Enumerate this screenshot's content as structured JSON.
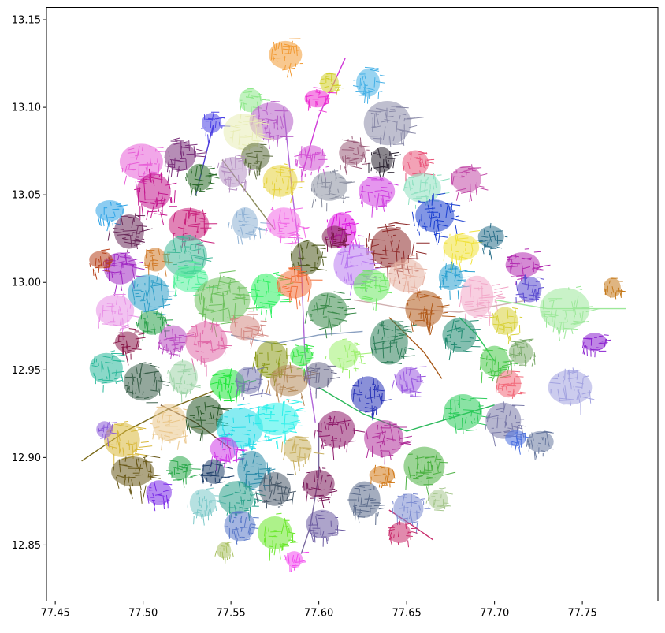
{
  "chart_data": {
    "type": "scatter",
    "title": "",
    "xlabel": "",
    "ylabel": "",
    "xlim": [
      77.445,
      77.793
    ],
    "ylim": [
      12.818,
      13.157
    ],
    "xticks": [
      77.45,
      77.5,
      77.55,
      77.6,
      77.65,
      77.7,
      77.75
    ],
    "xtick_labels": [
      "77.45",
      "77.50",
      "77.55",
      "77.60",
      "77.65",
      "77.70",
      "77.75"
    ],
    "yticks": [
      12.85,
      12.9,
      12.95,
      13.0,
      13.05,
      13.1,
      13.15
    ],
    "ytick_labels": [
      "12.85",
      "12.90",
      "12.95",
      "13.00",
      "13.05",
      "13.10",
      "13.15"
    ],
    "grid": false,
    "legend": "none",
    "description_seed": 7,
    "wards": [
      {
        "x": 77.581,
        "y": 13.13,
        "r": 0.01,
        "color": "#f29a33"
      },
      {
        "x": 77.628,
        "y": 13.114,
        "r": 0.009,
        "color": "#45b0e6"
      },
      {
        "x": 77.606,
        "y": 13.114,
        "r": 0.006,
        "color": "#d2cf2c"
      },
      {
        "x": 77.599,
        "y": 13.105,
        "r": 0.007,
        "color": "#ee2bd1"
      },
      {
        "x": 77.561,
        "y": 13.104,
        "r": 0.007,
        "color": "#8ee88a"
      },
      {
        "x": 77.573,
        "y": 13.092,
        "r": 0.012,
        "color": "#b55cc6"
      },
      {
        "x": 77.539,
        "y": 13.091,
        "r": 0.007,
        "color": "#4b42e6"
      },
      {
        "x": 77.639,
        "y": 13.091,
        "r": 0.013,
        "color": "#8a8aa8"
      },
      {
        "x": 77.557,
        "y": 13.086,
        "r": 0.011,
        "color": "#e8ecb5"
      },
      {
        "x": 77.521,
        "y": 13.072,
        "r": 0.011,
        "color": "#7a2f7a"
      },
      {
        "x": 77.619,
        "y": 13.074,
        "r": 0.01,
        "color": "#9b5d7a"
      },
      {
        "x": 77.499,
        "y": 13.069,
        "r": 0.012,
        "color": "#e85fd7"
      },
      {
        "x": 77.564,
        "y": 13.072,
        "r": 0.008,
        "color": "#5b6b3d"
      },
      {
        "x": 77.596,
        "y": 13.071,
        "r": 0.01,
        "color": "#d24fd3"
      },
      {
        "x": 77.636,
        "y": 13.07,
        "r": 0.008,
        "color": "#2a2230"
      },
      {
        "x": 77.655,
        "y": 13.068,
        "r": 0.008,
        "color": "#e9557a"
      },
      {
        "x": 77.532,
        "y": 13.06,
        "r": 0.008,
        "color": "#2b6b2a"
      },
      {
        "x": 77.551,
        "y": 13.063,
        "r": 0.01,
        "color": "#b58fc2"
      },
      {
        "x": 77.578,
        "y": 13.058,
        "r": 0.01,
        "color": "#e6d23a"
      },
      {
        "x": 77.606,
        "y": 13.055,
        "r": 0.011,
        "color": "#8b8fa0"
      },
      {
        "x": 77.633,
        "y": 13.052,
        "r": 0.01,
        "color": "#cf3fe0"
      },
      {
        "x": 77.659,
        "y": 13.054,
        "r": 0.011,
        "color": "#8ee0c0"
      },
      {
        "x": 77.684,
        "y": 13.059,
        "r": 0.009,
        "color": "#c24aa8"
      },
      {
        "x": 77.506,
        "y": 13.052,
        "r": 0.013,
        "color": "#c3178e"
      },
      {
        "x": 77.481,
        "y": 13.041,
        "r": 0.008,
        "color": "#2ea3e6"
      },
      {
        "x": 77.492,
        "y": 13.029,
        "r": 0.011,
        "color": "#6a2a5a"
      },
      {
        "x": 77.526,
        "y": 13.033,
        "r": 0.012,
        "color": "#c81e7a"
      },
      {
        "x": 77.558,
        "y": 13.034,
        "r": 0.009,
        "color": "#8db0d4"
      },
      {
        "x": 77.58,
        "y": 13.034,
        "r": 0.012,
        "color": "#f26ae6"
      },
      {
        "x": 77.593,
        "y": 13.014,
        "r": 0.01,
        "color": "#4f5a1e"
      },
      {
        "x": 77.613,
        "y": 13.03,
        "r": 0.011,
        "color": "#df12e0"
      },
      {
        "x": 77.641,
        "y": 13.02,
        "r": 0.015,
        "color": "#8e2a2a"
      },
      {
        "x": 77.666,
        "y": 13.038,
        "r": 0.013,
        "color": "#1b3fd0"
      },
      {
        "x": 77.681,
        "y": 13.02,
        "r": 0.01,
        "color": "#f0e23a"
      },
      {
        "x": 77.698,
        "y": 13.026,
        "r": 0.008,
        "color": "#2a6f8a"
      },
      {
        "x": 77.716,
        "y": 13.01,
        "r": 0.01,
        "color": "#b22ab0"
      },
      {
        "x": 77.675,
        "y": 13.003,
        "r": 0.009,
        "color": "#2aa0d0"
      },
      {
        "x": 77.65,
        "y": 13.004,
        "r": 0.011,
        "color": "#e6b0a0"
      },
      {
        "x": 77.62,
        "y": 13.01,
        "r": 0.012,
        "color": "#b97af0"
      },
      {
        "x": 77.609,
        "y": 13.026,
        "r": 0.007,
        "color": "#7a1a4a"
      },
      {
        "x": 77.487,
        "y": 13.008,
        "r": 0.011,
        "color": "#a028c2"
      },
      {
        "x": 77.476,
        "y": 13.013,
        "r": 0.007,
        "color": "#b7401a"
      },
      {
        "x": 77.507,
        "y": 13.013,
        "r": 0.008,
        "color": "#d07a2a"
      },
      {
        "x": 77.524,
        "y": 13.015,
        "r": 0.012,
        "color": "#42b898"
      },
      {
        "x": 77.503,
        "y": 12.994,
        "r": 0.012,
        "color": "#2f9fc8"
      },
      {
        "x": 77.527,
        "y": 13.002,
        "r": 0.01,
        "color": "#52f09a"
      },
      {
        "x": 77.545,
        "y": 12.99,
        "r": 0.016,
        "color": "#6fc160"
      },
      {
        "x": 77.57,
        "y": 12.995,
        "r": 0.011,
        "color": "#2df060"
      },
      {
        "x": 77.586,
        "y": 12.999,
        "r": 0.01,
        "color": "#f2703a"
      },
      {
        "x": 77.605,
        "y": 12.984,
        "r": 0.012,
        "color": "#3b8a4a"
      },
      {
        "x": 77.63,
        "y": 12.998,
        "r": 0.01,
        "color": "#6ee864"
      },
      {
        "x": 77.66,
        "y": 12.985,
        "r": 0.011,
        "color": "#b15a1a"
      },
      {
        "x": 77.69,
        "y": 12.992,
        "r": 0.012,
        "color": "#f2a7c8"
      },
      {
        "x": 77.72,
        "y": 12.996,
        "r": 0.009,
        "color": "#5a4ad0"
      },
      {
        "x": 77.74,
        "y": 12.985,
        "r": 0.014,
        "color": "#9de89a"
      },
      {
        "x": 77.767,
        "y": 12.997,
        "r": 0.006,
        "color": "#c5791a"
      },
      {
        "x": 77.706,
        "y": 12.978,
        "r": 0.009,
        "color": "#d8d23a"
      },
      {
        "x": 77.484,
        "y": 12.984,
        "r": 0.011,
        "color": "#e890e6"
      },
      {
        "x": 77.505,
        "y": 12.977,
        "r": 0.009,
        "color": "#2aa04a"
      },
      {
        "x": 77.491,
        "y": 12.966,
        "r": 0.008,
        "color": "#8a1a4a"
      },
      {
        "x": 77.479,
        "y": 12.951,
        "r": 0.01,
        "color": "#2ab89a"
      },
      {
        "x": 77.5,
        "y": 12.943,
        "r": 0.012,
        "color": "#3a5f4a"
      },
      {
        "x": 77.517,
        "y": 12.968,
        "r": 0.01,
        "color": "#b84ac0"
      },
      {
        "x": 77.536,
        "y": 12.966,
        "r": 0.013,
        "color": "#e06aa8"
      },
      {
        "x": 77.558,
        "y": 12.974,
        "r": 0.01,
        "color": "#d48a84"
      },
      {
        "x": 77.573,
        "y": 12.956,
        "r": 0.011,
        "color": "#8a9a1a"
      },
      {
        "x": 77.59,
        "y": 12.958,
        "r": 0.008,
        "color": "#3ae84a"
      },
      {
        "x": 77.614,
        "y": 12.959,
        "r": 0.01,
        "color": "#9ef070"
      },
      {
        "x": 77.64,
        "y": 12.966,
        "r": 0.013,
        "color": "#2e7f5a"
      },
      {
        "x": 77.68,
        "y": 12.97,
        "r": 0.01,
        "color": "#1f8a70"
      },
      {
        "x": 77.7,
        "y": 12.955,
        "r": 0.01,
        "color": "#48c848"
      },
      {
        "x": 77.715,
        "y": 12.96,
        "r": 0.009,
        "color": "#7aaa6a"
      },
      {
        "x": 77.743,
        "y": 12.94,
        "r": 0.012,
        "color": "#a2a2e0"
      },
      {
        "x": 77.757,
        "y": 12.966,
        "r": 0.007,
        "color": "#8a20d0"
      },
      {
        "x": 77.708,
        "y": 12.942,
        "r": 0.008,
        "color": "#f26a7a"
      },
      {
        "x": 77.523,
        "y": 12.946,
        "r": 0.01,
        "color": "#9ed4a8"
      },
      {
        "x": 77.548,
        "y": 12.942,
        "r": 0.01,
        "color": "#1fe63a"
      },
      {
        "x": 77.56,
        "y": 12.944,
        "r": 0.01,
        "color": "#7a7ab0"
      },
      {
        "x": 77.583,
        "y": 12.944,
        "r": 0.012,
        "color": "#b58a5a"
      },
      {
        "x": 77.6,
        "y": 12.947,
        "r": 0.008,
        "color": "#6a6a8a"
      },
      {
        "x": 77.628,
        "y": 12.936,
        "r": 0.011,
        "color": "#2a35b8"
      },
      {
        "x": 77.651,
        "y": 12.944,
        "r": 0.009,
        "color": "#9a5ae0"
      },
      {
        "x": 77.682,
        "y": 12.926,
        "r": 0.011,
        "color": "#2acc5a"
      },
      {
        "x": 77.705,
        "y": 12.921,
        "r": 0.011,
        "color": "#7a7aa8"
      },
      {
        "x": 77.726,
        "y": 12.909,
        "r": 0.008,
        "color": "#6a7aa0"
      },
      {
        "x": 77.712,
        "y": 12.911,
        "r": 0.006,
        "color": "#4a70e0"
      },
      {
        "x": 77.488,
        "y": 12.91,
        "r": 0.011,
        "color": "#d8b83a"
      },
      {
        "x": 77.478,
        "y": 12.916,
        "r": 0.006,
        "color": "#8a5ad8"
      },
      {
        "x": 77.494,
        "y": 12.892,
        "r": 0.012,
        "color": "#6a5a1a"
      },
      {
        "x": 77.515,
        "y": 12.92,
        "r": 0.012,
        "color": "#eac68a"
      },
      {
        "x": 77.535,
        "y": 12.924,
        "r": 0.011,
        "color": "#2a5a2a"
      },
      {
        "x": 77.555,
        "y": 12.917,
        "r": 0.013,
        "color": "#25dce8"
      },
      {
        "x": 77.576,
        "y": 12.922,
        "r": 0.013,
        "color": "#2ef0ea"
      },
      {
        "x": 77.61,
        "y": 12.916,
        "r": 0.012,
        "color": "#8e1a6a"
      },
      {
        "x": 77.637,
        "y": 12.911,
        "r": 0.011,
        "color": "#b0309a"
      },
      {
        "x": 77.66,
        "y": 12.895,
        "r": 0.012,
        "color": "#4ab040"
      },
      {
        "x": 77.546,
        "y": 12.905,
        "r": 0.009,
        "color": "#d03ae8"
      },
      {
        "x": 77.562,
        "y": 12.893,
        "r": 0.011,
        "color": "#2a8aa8"
      },
      {
        "x": 77.588,
        "y": 12.905,
        "r": 0.01,
        "color": "#c8b060"
      },
      {
        "x": 77.509,
        "y": 12.88,
        "r": 0.007,
        "color": "#7a2ae8"
      },
      {
        "x": 77.521,
        "y": 12.894,
        "r": 0.008,
        "color": "#2aa84a"
      },
      {
        "x": 77.54,
        "y": 12.892,
        "r": 0.008,
        "color": "#1f3f6a"
      },
      {
        "x": 77.534,
        "y": 12.874,
        "r": 0.009,
        "color": "#7ac8c8"
      },
      {
        "x": 77.553,
        "y": 12.877,
        "r": 0.011,
        "color": "#2aa08a"
      },
      {
        "x": 77.575,
        "y": 12.882,
        "r": 0.011,
        "color": "#4a5a6a"
      },
      {
        "x": 77.6,
        "y": 12.885,
        "r": 0.01,
        "color": "#7a1a5a"
      },
      {
        "x": 77.626,
        "y": 12.876,
        "r": 0.011,
        "color": "#5a6a8a"
      },
      {
        "x": 77.636,
        "y": 12.89,
        "r": 0.007,
        "color": "#d27a1a"
      },
      {
        "x": 77.651,
        "y": 12.871,
        "r": 0.01,
        "color": "#7a8ad0"
      },
      {
        "x": 77.668,
        "y": 12.876,
        "r": 0.007,
        "color": "#a8c890"
      },
      {
        "x": 77.555,
        "y": 12.861,
        "r": 0.009,
        "color": "#5a78c8"
      },
      {
        "x": 77.575,
        "y": 12.857,
        "r": 0.011,
        "color": "#6ae82a"
      },
      {
        "x": 77.602,
        "y": 12.862,
        "r": 0.009,
        "color": "#6a5aa0"
      },
      {
        "x": 77.646,
        "y": 12.857,
        "r": 0.007,
        "color": "#c82a6a"
      },
      {
        "x": 77.546,
        "y": 12.847,
        "r": 0.005,
        "color": "#a8c060"
      },
      {
        "x": 77.586,
        "y": 12.842,
        "r": 0.006,
        "color": "#f24aee"
      }
    ],
    "roads": [
      {
        "points": [
          [
            77.58,
            13.1
          ],
          [
            77.585,
            13.05
          ],
          [
            77.59,
            13.01
          ],
          [
            77.592,
            12.96
          ],
          [
            77.598,
            12.92
          ]
        ],
        "color": "#b066d8"
      },
      {
        "points": [
          [
            77.615,
            13.128
          ],
          [
            77.6,
            13.095
          ],
          [
            77.59,
            13.06
          ]
        ],
        "color": "#d03ad8"
      },
      {
        "points": [
          [
            77.465,
            12.898
          ],
          [
            77.49,
            12.915
          ],
          [
            77.515,
            12.928
          ],
          [
            77.54,
            12.938
          ]
        ],
        "color": "#7a6a1a"
      },
      {
        "points": [
          [
            77.51,
            12.93
          ],
          [
            77.53,
            12.92
          ],
          [
            77.55,
            12.905
          ]
        ],
        "color": "#6a4a2a"
      },
      {
        "points": [
          [
            77.62,
            12.99
          ],
          [
            77.65,
            12.985
          ],
          [
            77.68,
            12.983
          ],
          [
            77.72,
            12.99
          ]
        ],
        "color": "#d0b0b0"
      },
      {
        "points": [
          [
            77.64,
            12.98
          ],
          [
            77.66,
            12.96
          ],
          [
            77.67,
            12.945
          ]
        ],
        "color": "#a85a1a"
      },
      {
        "points": [
          [
            77.6,
            12.94
          ],
          [
            77.625,
            12.925
          ],
          [
            77.65,
            12.915
          ],
          [
            77.7,
            12.93
          ]
        ],
        "color": "#2ab85a"
      },
      {
        "points": [
          [
            77.6,
            12.92
          ],
          [
            77.6,
            12.89
          ],
          [
            77.595,
            12.86
          ],
          [
            77.59,
            12.845
          ]
        ],
        "color": "#7a6aa0"
      },
      {
        "points": [
          [
            77.545,
            13.07
          ],
          [
            77.56,
            13.05
          ],
          [
            77.575,
            13.03
          ]
        ],
        "color": "#8a8a5a"
      },
      {
        "points": [
          [
            77.54,
            13.09
          ],
          [
            77.535,
            13.07
          ],
          [
            77.53,
            13.05
          ]
        ],
        "color": "#4a3ad8"
      },
      {
        "points": [
          [
            77.64,
            12.87
          ],
          [
            77.655,
            12.86
          ],
          [
            77.665,
            12.853
          ]
        ],
        "color": "#c82a6a"
      },
      {
        "points": [
          [
            77.7,
            12.99
          ],
          [
            77.73,
            12.985
          ],
          [
            77.76,
            12.985
          ],
          [
            77.775,
            12.985
          ]
        ],
        "color": "#9de89a"
      },
      {
        "points": [
          [
            77.68,
            12.98
          ],
          [
            77.69,
            12.97
          ],
          [
            77.7,
            12.955
          ]
        ],
        "color": "#2ac85a"
      },
      {
        "points": [
          [
            77.55,
            12.97
          ],
          [
            77.575,
            12.965
          ],
          [
            77.6,
            12.97
          ],
          [
            77.625,
            12.972
          ]
        ],
        "color": "#8aa0c0"
      }
    ]
  }
}
